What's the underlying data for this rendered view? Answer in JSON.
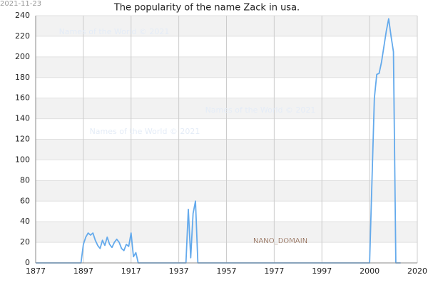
{
  "chart_data": {
    "type": "line",
    "title": "The popularity of the name Zack in usa.",
    "date": "2021-11-23",
    "watermarks": [
      "Names of the World © 2021",
      "Names of the World © 2021",
      "Names of the World © 2021"
    ],
    "annotation": "NANO_DOMAIN",
    "color": "#64aaec",
    "x": [
      1877,
      1895,
      1896,
      1897,
      1898,
      1899,
      1900,
      1901,
      1902,
      1903,
      1904,
      1905,
      1906,
      1907,
      1908,
      1909,
      1910,
      1911,
      1912,
      1913,
      1914,
      1915,
      1916,
      1917,
      1918,
      1919,
      1920,
      1940,
      1941,
      1942,
      1943,
      1944,
      1945,
      2000,
      2002,
      2003,
      2004,
      2005,
      2006,
      2007,
      2008,
      2009,
      2010,
      2011,
      2013
    ],
    "values": [
      0,
      0,
      0,
      18,
      25,
      29,
      27,
      29,
      22,
      17,
      14,
      22,
      17,
      25,
      18,
      15,
      20,
      23,
      20,
      14,
      12,
      18,
      16,
      29,
      6,
      10,
      0,
      0,
      52,
      5,
      48,
      60,
      0,
      0,
      160,
      183,
      184,
      195,
      210,
      225,
      237,
      220,
      205,
      0,
      0
    ],
    "xlim": [
      1877,
      2020
    ],
    "xticks": [
      1877,
      1897,
      1917,
      1937,
      1957,
      1977,
      1997,
      2000,
      2020
    ],
    "ylim": [
      0,
      240
    ],
    "yticks": [
      0,
      20,
      40,
      60,
      80,
      100,
      120,
      140,
      160,
      180,
      200,
      220,
      240
    ],
    "grid": true
  }
}
